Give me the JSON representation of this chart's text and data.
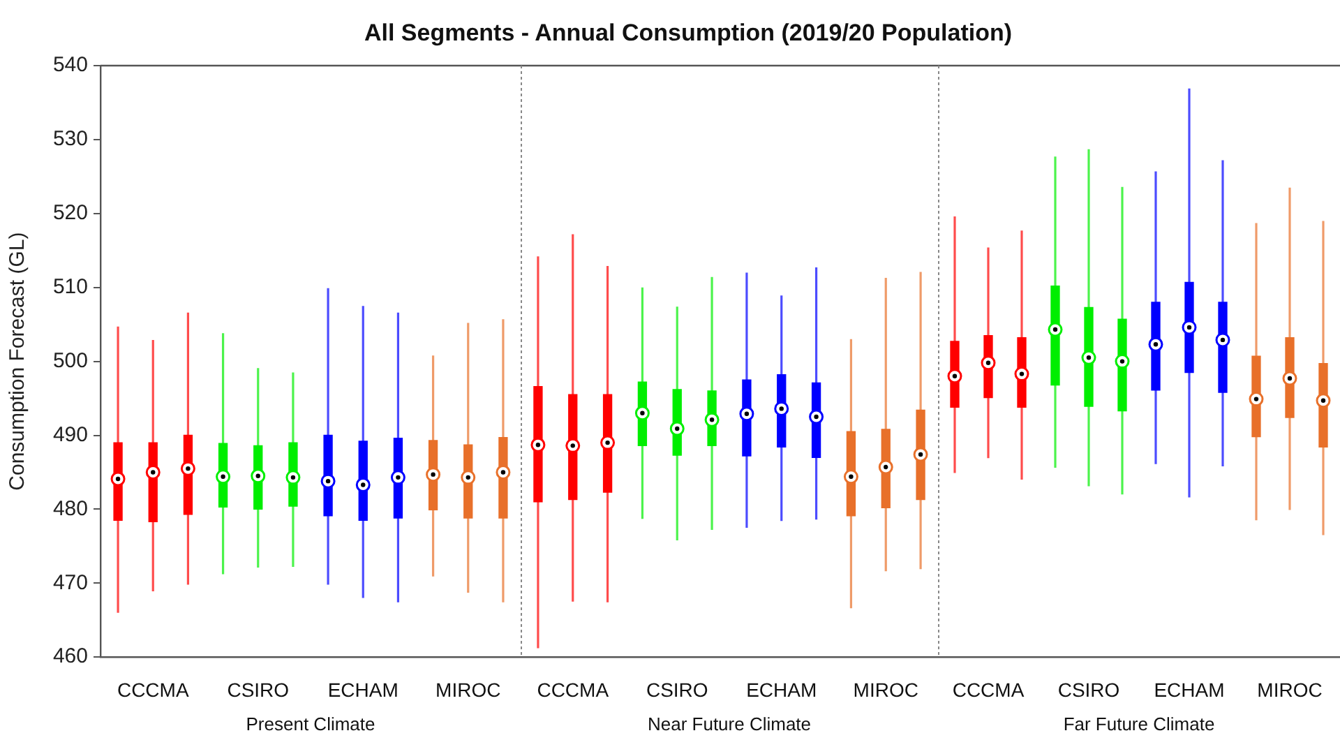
{
  "chart_data": [
    {
      "type": "box",
      "title": "All Segments - Annual Consumption (2019/20 Population)",
      "xlabel": "Present Climate",
      "ylabel": "Consumption Forecast (GL)",
      "categories": [
        null,
        "CCCMA",
        null,
        null,
        "CSIRO",
        null,
        null,
        "ECHAM",
        null,
        null,
        "MIROC",
        null
      ],
      "colors": [
        "#ff0000",
        "#ff0000",
        "#ff0000",
        "#00ee00",
        "#00ee00",
        "#00ee00",
        "#0000ff",
        "#0000ff",
        "#0000ff",
        "#e8702a",
        "#e8702a",
        "#e8702a"
      ],
      "boxes": [
        {
          "low": 466.0,
          "q1": 478.5,
          "median": 484.1,
          "q3": 489.0,
          "high": 504.7
        },
        {
          "low": 468.9,
          "q1": 478.3,
          "median": 485.0,
          "q3": 489.0,
          "high": 502.9
        },
        {
          "low": 469.8,
          "q1": 479.3,
          "median": 485.5,
          "q3": 490.0,
          "high": 506.6
        },
        {
          "low": 471.2,
          "q1": 480.3,
          "median": 484.4,
          "q3": 488.9,
          "high": 503.8
        },
        {
          "low": 472.1,
          "q1": 480.0,
          "median": 484.5,
          "q3": 488.6,
          "high": 499.1
        },
        {
          "low": 472.2,
          "q1": 480.4,
          "median": 484.3,
          "q3": 489.0,
          "high": 498.5
        },
        {
          "low": 469.8,
          "q1": 479.1,
          "median": 483.8,
          "q3": 490.0,
          "high": 509.9
        },
        {
          "low": 468.0,
          "q1": 478.5,
          "median": 483.3,
          "q3": 489.2,
          "high": 507.5
        },
        {
          "low": 467.4,
          "q1": 478.8,
          "median": 484.3,
          "q3": 489.6,
          "high": 506.6
        },
        {
          "low": 470.9,
          "q1": 479.9,
          "median": 484.7,
          "q3": 489.3,
          "high": 500.8
        },
        {
          "low": 468.7,
          "q1": 478.8,
          "median": 484.3,
          "q3": 488.7,
          "high": 505.2
        },
        {
          "low": 467.4,
          "q1": 478.8,
          "median": 485.0,
          "q3": 489.7,
          "high": 505.7
        }
      ],
      "ylim": [
        460,
        540
      ],
      "yticks": [
        460,
        470,
        480,
        490,
        500,
        510,
        520,
        530,
        540
      ],
      "grid": false
    },
    {
      "type": "box",
      "xlabel": "Near Future Climate",
      "categories": [
        null,
        "CCCMA",
        null,
        null,
        "CSIRO",
        null,
        null,
        "ECHAM",
        null,
        null,
        "MIROC",
        null
      ],
      "colors": [
        "#ff0000",
        "#ff0000",
        "#ff0000",
        "#00ee00",
        "#00ee00",
        "#00ee00",
        "#0000ff",
        "#0000ff",
        "#0000ff",
        "#e8702a",
        "#e8702a",
        "#e8702a"
      ],
      "boxes": [
        {
          "low": 461.2,
          "q1": 481.0,
          "median": 488.7,
          "q3": 496.6,
          "high": 514.2
        },
        {
          "low": 467.5,
          "q1": 481.3,
          "median": 488.6,
          "q3": 495.5,
          "high": 517.2
        },
        {
          "low": 467.4,
          "q1": 482.3,
          "median": 489.0,
          "q3": 495.5,
          "high": 512.9
        },
        {
          "low": 478.7,
          "q1": 488.6,
          "median": 493.0,
          "q3": 497.2,
          "high": 510.0
        },
        {
          "low": 475.8,
          "q1": 487.3,
          "median": 490.9,
          "q3": 496.2,
          "high": 507.4
        },
        {
          "low": 477.2,
          "q1": 488.6,
          "median": 492.1,
          "q3": 496.0,
          "high": 511.4
        },
        {
          "low": 477.5,
          "q1": 487.2,
          "median": 492.9,
          "q3": 497.5,
          "high": 512.0
        },
        {
          "low": 478.4,
          "q1": 488.4,
          "median": 493.6,
          "q3": 498.2,
          "high": 508.9
        },
        {
          "low": 478.6,
          "q1": 487.0,
          "median": 492.5,
          "q3": 497.1,
          "high": 512.7
        },
        {
          "low": 466.6,
          "q1": 479.1,
          "median": 484.4,
          "q3": 490.5,
          "high": 503.0
        },
        {
          "low": 471.6,
          "q1": 480.2,
          "median": 485.7,
          "q3": 490.8,
          "high": 511.3
        },
        {
          "low": 471.9,
          "q1": 481.3,
          "median": 487.4,
          "q3": 493.4,
          "high": 512.1
        }
      ],
      "ylim": [
        460,
        540
      ],
      "yticks": [
        460,
        470,
        480,
        490,
        500,
        510,
        520,
        530,
        540
      ],
      "grid": false,
      "tick_labels": "x"
    },
    {
      "type": "box",
      "xlabel": "Far Future Climate",
      "categories": [
        null,
        "CCCMA",
        null,
        null,
        "CSIRO",
        null,
        null,
        "ECHAM",
        null,
        null,
        "MIROC",
        null
      ],
      "colors": [
        "#ff0000",
        "#ff0000",
        "#ff0000",
        "#00ee00",
        "#00ee00",
        "#00ee00",
        "#0000ff",
        "#0000ff",
        "#0000ff",
        "#e8702a",
        "#e8702a",
        "#e8702a"
      ],
      "boxes": [
        {
          "low": 484.9,
          "q1": 493.8,
          "median": 498.0,
          "q3": 502.7,
          "high": 519.6
        },
        {
          "low": 486.9,
          "q1": 495.1,
          "median": 499.8,
          "q3": 503.5,
          "high": 515.4
        },
        {
          "low": 484.0,
          "q1": 493.8,
          "median": 498.3,
          "q3": 503.2,
          "high": 517.7
        },
        {
          "low": 485.6,
          "q1": 496.8,
          "median": 504.3,
          "q3": 510.2,
          "high": 527.7
        },
        {
          "low": 483.1,
          "q1": 493.9,
          "median": 500.5,
          "q3": 507.3,
          "high": 528.7
        },
        {
          "low": 482.0,
          "q1": 493.3,
          "median": 500.0,
          "q3": 505.7,
          "high": 523.6
        },
        {
          "low": 486.1,
          "q1": 496.1,
          "median": 502.3,
          "q3": 508.0,
          "high": 525.7
        },
        {
          "low": 481.6,
          "q1": 498.5,
          "median": 504.6,
          "q3": 510.7,
          "high": 536.9
        },
        {
          "low": 485.8,
          "q1": 495.8,
          "median": 502.9,
          "q3": 508.0,
          "high": 527.2
        },
        {
          "low": 478.5,
          "q1": 489.8,
          "median": 494.9,
          "q3": 500.7,
          "high": 518.7
        },
        {
          "low": 479.9,
          "q1": 492.4,
          "median": 497.7,
          "q3": 503.2,
          "high": 523.5
        },
        {
          "low": 476.5,
          "q1": 488.4,
          "median": 494.7,
          "q3": 499.7,
          "high": 519.0
        }
      ],
      "ylim": [
        460,
        540
      ],
      "yticks": [
        460,
        470,
        480,
        490,
        500,
        510,
        520,
        530,
        540
      ],
      "grid": false,
      "tick_labels": "x"
    }
  ]
}
